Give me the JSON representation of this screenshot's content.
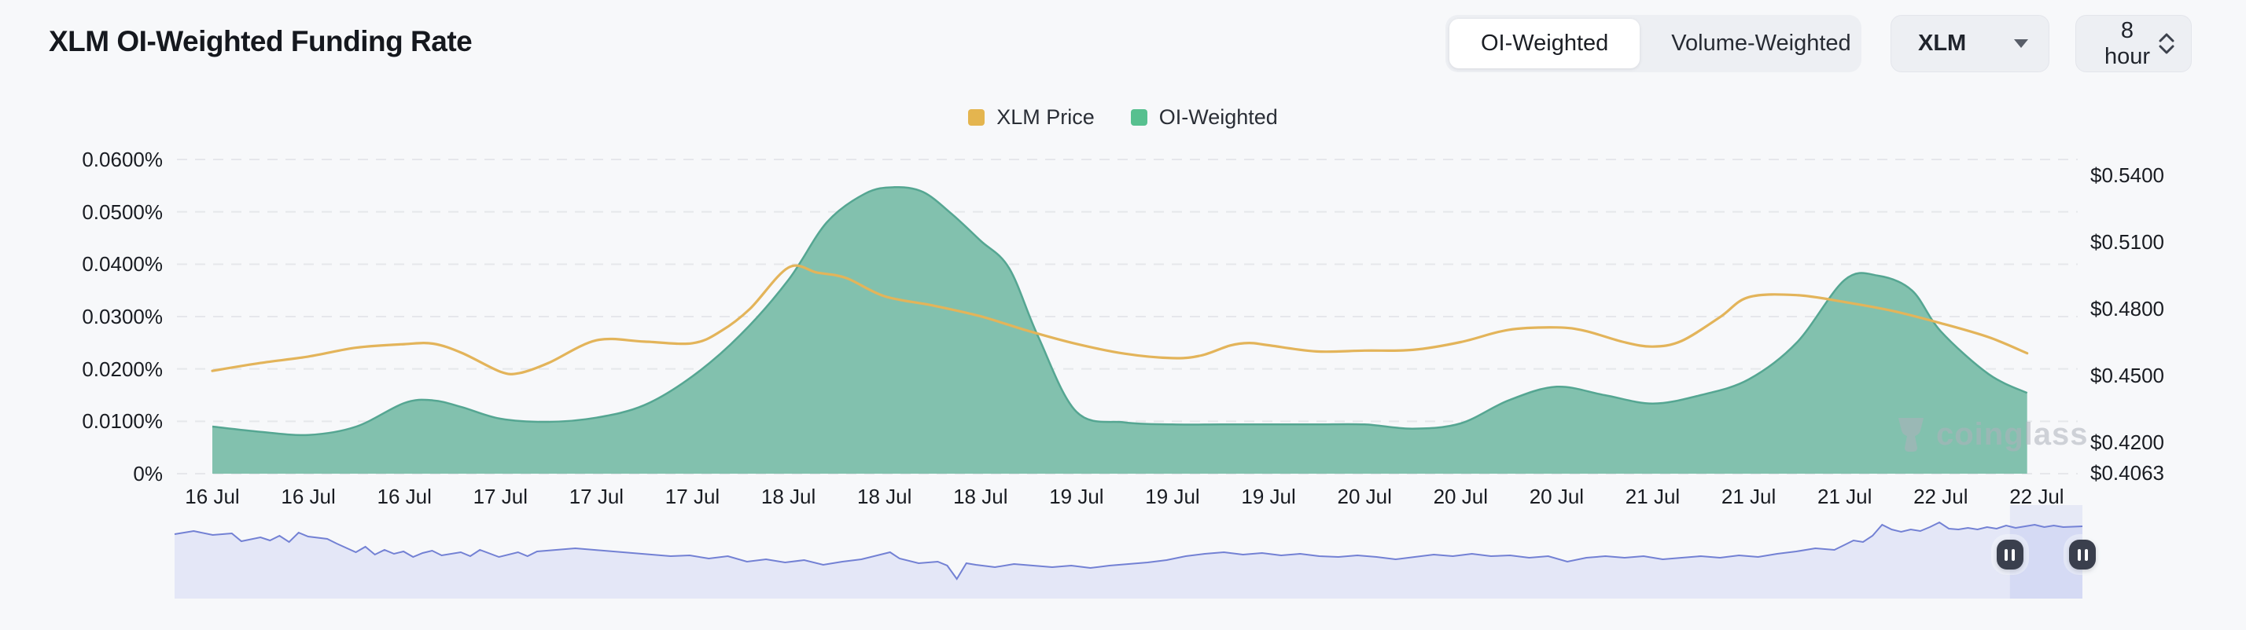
{
  "header": {
    "title": "XLM OI-Weighted Funding Rate"
  },
  "controls": {
    "view_toggle": {
      "options": [
        "OI-Weighted",
        "Volume-Weighted"
      ],
      "active": "OI-Weighted"
    },
    "symbol_dropdown": {
      "value": "XLM"
    },
    "interval_dropdown": {
      "value": "8 hour"
    }
  },
  "legend": {
    "items": [
      {
        "label": "XLM Price",
        "color": "#e4b54f"
      },
      {
        "label": "OI-Weighted",
        "color": "#57c08f"
      }
    ]
  },
  "watermark": {
    "text": "coinglass"
  },
  "chart_data": {
    "type": "area+line",
    "title": "XLM OI-Weighted Funding Rate",
    "grid": "dashed-horizontal",
    "legend_position": "top-center",
    "x_tick_labels": [
      "16 Jul",
      "16 Jul",
      "16 Jul",
      "17 Jul",
      "17 Jul",
      "17 Jul",
      "18 Jul",
      "18 Jul",
      "18 Jul",
      "19 Jul",
      "19 Jul",
      "19 Jul",
      "20 Jul",
      "20 Jul",
      "20 Jul",
      "21 Jul",
      "21 Jul",
      "21 Jul",
      "22 Jul",
      "22 Jul"
    ],
    "left_axis": {
      "unit": "percent",
      "range": [
        0,
        0.06
      ],
      "ticks": [
        {
          "label": "0.0600%",
          "value": 0.06
        },
        {
          "label": "0.0500%",
          "value": 0.05
        },
        {
          "label": "0.0400%",
          "value": 0.04
        },
        {
          "label": "0.0300%",
          "value": 0.03
        },
        {
          "label": "0.0200%",
          "value": 0.02
        },
        {
          "label": "0.0100%",
          "value": 0.01
        },
        {
          "label": "0%",
          "value": 0
        }
      ]
    },
    "right_axis": {
      "unit": "USD",
      "ticks": [
        {
          "label": "$0.5400",
          "value": 0.54
        },
        {
          "label": "$0.5100",
          "value": 0.51
        },
        {
          "label": "$0.4800",
          "value": 0.48
        },
        {
          "label": "$0.4500",
          "value": 0.45
        },
        {
          "label": "$0.4200",
          "value": 0.42
        },
        {
          "label": "$0.4063",
          "value": 0.4063
        }
      ]
    },
    "series": [
      {
        "name": "OI-Weighted",
        "kind": "area",
        "axis": "left",
        "unit": "percent",
        "fill": "#82c1ae",
        "stroke": "#55a692",
        "legend_color": "#57c08f",
        "points": [
          [
            0,
            0.009
          ],
          [
            0.5,
            0.008
          ],
          [
            1,
            0.0074
          ],
          [
            1.5,
            0.009
          ],
          [
            2,
            0.0135
          ],
          [
            2.3,
            0.014
          ],
          [
            2.6,
            0.0127
          ],
          [
            3,
            0.0105
          ],
          [
            3.5,
            0.0099
          ],
          [
            4,
            0.0107
          ],
          [
            4.5,
            0.0131
          ],
          [
            5,
            0.0186
          ],
          [
            5.5,
            0.0265
          ],
          [
            6,
            0.037
          ],
          [
            6.4,
            0.048
          ],
          [
            6.8,
            0.0535
          ],
          [
            7.1,
            0.0547
          ],
          [
            7.4,
            0.0538
          ],
          [
            7.7,
            0.0496
          ],
          [
            8,
            0.0445
          ],
          [
            8.3,
            0.0392
          ],
          [
            8.6,
            0.0262
          ],
          [
            9,
            0.0118
          ],
          [
            9.5,
            0.0098
          ],
          [
            10,
            0.0094
          ],
          [
            10.5,
            0.0094
          ],
          [
            11,
            0.0094
          ],
          [
            11.5,
            0.0094
          ],
          [
            12,
            0.0094
          ],
          [
            12.5,
            0.0086
          ],
          [
            13,
            0.0096
          ],
          [
            13.5,
            0.014
          ],
          [
            14,
            0.0166
          ],
          [
            14.5,
            0.015
          ],
          [
            15,
            0.0134
          ],
          [
            15.5,
            0.015
          ],
          [
            16,
            0.018
          ],
          [
            16.5,
            0.025
          ],
          [
            17,
            0.037
          ],
          [
            17.35,
            0.0378
          ],
          [
            17.7,
            0.035
          ],
          [
            18,
            0.0272
          ],
          [
            18.5,
            0.019
          ],
          [
            18.9,
            0.0154
          ]
        ]
      },
      {
        "name": "XLM Price",
        "kind": "line",
        "axis": "right",
        "unit": "USD",
        "stroke": "#e3b45a",
        "legend_color": "#e4b54f",
        "points": [
          [
            0,
            0.4521
          ],
          [
            0.5,
            0.4556
          ],
          [
            1,
            0.4585
          ],
          [
            1.5,
            0.4625
          ],
          [
            2,
            0.4641
          ],
          [
            2.3,
            0.4643
          ],
          [
            2.6,
            0.4601
          ],
          [
            3,
            0.4517
          ],
          [
            3.2,
            0.4511
          ],
          [
            3.5,
            0.4556
          ],
          [
            4,
            0.4658
          ],
          [
            4.5,
            0.4652
          ],
          [
            5,
            0.4645
          ],
          [
            5.3,
            0.47
          ],
          [
            5.6,
            0.48
          ],
          [
            6,
            0.4985
          ],
          [
            6.3,
            0.4962
          ],
          [
            6.6,
            0.4938
          ],
          [
            7,
            0.4856
          ],
          [
            7.5,
            0.4815
          ],
          [
            8,
            0.4766
          ],
          [
            8.5,
            0.47
          ],
          [
            9,
            0.4642
          ],
          [
            9.5,
            0.4598
          ],
          [
            10,
            0.4578
          ],
          [
            10.3,
            0.459
          ],
          [
            10.6,
            0.4635
          ],
          [
            10.8,
            0.4646
          ],
          [
            11,
            0.4636
          ],
          [
            11.5,
            0.4608
          ],
          [
            12,
            0.4612
          ],
          [
            12.5,
            0.4615
          ],
          [
            13,
            0.465
          ],
          [
            13.5,
            0.4705
          ],
          [
            14,
            0.4716
          ],
          [
            14.3,
            0.47
          ],
          [
            14.7,
            0.465
          ],
          [
            15,
            0.463
          ],
          [
            15.3,
            0.4655
          ],
          [
            15.7,
            0.4762
          ],
          [
            16,
            0.4852
          ],
          [
            16.5,
            0.4861
          ],
          [
            17,
            0.483
          ],
          [
            17.5,
            0.479
          ],
          [
            18,
            0.4735
          ],
          [
            18.5,
            0.4672
          ],
          [
            18.9,
            0.46
          ]
        ]
      }
    ],
    "navigator": {
      "line_color": "#7381d4",
      "fill_color": "#e4e7f7",
      "selection_color": "rgba(124,141,224,0.14)",
      "selection": [
        0.962,
        1.0
      ],
      "points": [
        [
          0,
          0.8
        ],
        [
          0.01,
          0.84
        ],
        [
          0.02,
          0.79
        ],
        [
          0.03,
          0.81
        ],
        [
          0.035,
          0.71
        ],
        [
          0.045,
          0.76
        ],
        [
          0.05,
          0.72
        ],
        [
          0.055,
          0.78
        ],
        [
          0.06,
          0.7
        ],
        [
          0.065,
          0.82
        ],
        [
          0.07,
          0.77
        ],
        [
          0.08,
          0.74
        ],
        [
          0.085,
          0.68
        ],
        [
          0.095,
          0.57
        ],
        [
          0.1,
          0.64
        ],
        [
          0.105,
          0.54
        ],
        [
          0.11,
          0.6
        ],
        [
          0.115,
          0.55
        ],
        [
          0.12,
          0.58
        ],
        [
          0.125,
          0.51
        ],
        [
          0.13,
          0.56
        ],
        [
          0.135,
          0.59
        ],
        [
          0.14,
          0.53
        ],
        [
          0.15,
          0.57
        ],
        [
          0.155,
          0.52
        ],
        [
          0.16,
          0.6
        ],
        [
          0.17,
          0.51
        ],
        [
          0.18,
          0.57
        ],
        [
          0.185,
          0.52
        ],
        [
          0.19,
          0.58
        ],
        [
          0.2,
          0.6
        ],
        [
          0.21,
          0.62
        ],
        [
          0.22,
          0.6
        ],
        [
          0.23,
          0.58
        ],
        [
          0.24,
          0.56
        ],
        [
          0.25,
          0.54
        ],
        [
          0.26,
          0.52
        ],
        [
          0.27,
          0.53
        ],
        [
          0.28,
          0.49
        ],
        [
          0.29,
          0.52
        ],
        [
          0.3,
          0.45
        ],
        [
          0.31,
          0.48
        ],
        [
          0.32,
          0.44
        ],
        [
          0.33,
          0.47
        ],
        [
          0.34,
          0.41
        ],
        [
          0.35,
          0.45
        ],
        [
          0.36,
          0.48
        ],
        [
          0.37,
          0.54
        ],
        [
          0.375,
          0.57
        ],
        [
          0.38,
          0.49
        ],
        [
          0.39,
          0.43
        ],
        [
          0.4,
          0.45
        ],
        [
          0.405,
          0.4
        ],
        [
          0.41,
          0.23
        ],
        [
          0.415,
          0.43
        ],
        [
          0.42,
          0.41
        ],
        [
          0.43,
          0.38
        ],
        [
          0.44,
          0.42
        ],
        [
          0.45,
          0.4
        ],
        [
          0.46,
          0.38
        ],
        [
          0.47,
          0.4
        ],
        [
          0.48,
          0.37
        ],
        [
          0.49,
          0.4
        ],
        [
          0.5,
          0.42
        ],
        [
          0.51,
          0.44
        ],
        [
          0.52,
          0.47
        ],
        [
          0.53,
          0.52
        ],
        [
          0.54,
          0.55
        ],
        [
          0.55,
          0.57
        ],
        [
          0.56,
          0.54
        ],
        [
          0.57,
          0.56
        ],
        [
          0.58,
          0.53
        ],
        [
          0.59,
          0.55
        ],
        [
          0.6,
          0.52
        ],
        [
          0.61,
          0.51
        ],
        [
          0.62,
          0.53
        ],
        [
          0.63,
          0.51
        ],
        [
          0.64,
          0.48
        ],
        [
          0.65,
          0.51
        ],
        [
          0.66,
          0.54
        ],
        [
          0.67,
          0.52
        ],
        [
          0.68,
          0.55
        ],
        [
          0.69,
          0.52
        ],
        [
          0.7,
          0.53
        ],
        [
          0.71,
          0.5
        ],
        [
          0.72,
          0.52
        ],
        [
          0.73,
          0.45
        ],
        [
          0.74,
          0.5
        ],
        [
          0.75,
          0.52
        ],
        [
          0.76,
          0.5
        ],
        [
          0.77,
          0.52
        ],
        [
          0.78,
          0.48
        ],
        [
          0.79,
          0.5
        ],
        [
          0.8,
          0.52
        ],
        [
          0.81,
          0.5
        ],
        [
          0.82,
          0.53
        ],
        [
          0.83,
          0.51
        ],
        [
          0.84,
          0.55
        ],
        [
          0.85,
          0.58
        ],
        [
          0.86,
          0.62
        ],
        [
          0.87,
          0.6
        ],
        [
          0.875,
          0.66
        ],
        [
          0.88,
          0.72
        ],
        [
          0.885,
          0.7
        ],
        [
          0.89,
          0.78
        ],
        [
          0.895,
          0.92
        ],
        [
          0.9,
          0.86
        ],
        [
          0.905,
          0.83
        ],
        [
          0.91,
          0.86
        ],
        [
          0.915,
          0.84
        ],
        [
          0.92,
          0.89
        ],
        [
          0.925,
          0.95
        ],
        [
          0.93,
          0.87
        ],
        [
          0.935,
          0.86
        ],
        [
          0.94,
          0.88
        ],
        [
          0.945,
          0.86
        ],
        [
          0.95,
          0.89
        ],
        [
          0.955,
          0.87
        ],
        [
          0.96,
          0.91
        ],
        [
          0.965,
          0.88
        ],
        [
          0.97,
          0.9
        ],
        [
          0.975,
          0.92
        ],
        [
          0.98,
          0.89
        ],
        [
          0.985,
          0.91
        ],
        [
          0.99,
          0.89
        ],
        [
          1,
          0.9
        ]
      ]
    }
  }
}
